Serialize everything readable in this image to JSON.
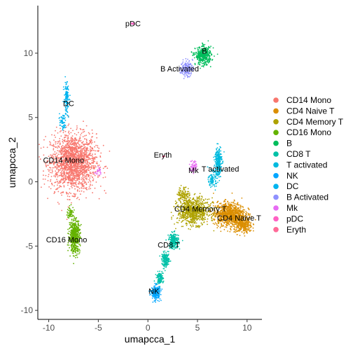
{
  "chart_data": {
    "type": "scatter",
    "title": "",
    "xlabel": "umapcca_1",
    "ylabel": "umapcca_2",
    "xlim": [
      -11.1,
      11.5
    ],
    "ylim": [
      -10.7,
      13.7
    ],
    "xticks": [
      -10,
      -5,
      0,
      5,
      10
    ],
    "yticks": [
      -10,
      -5,
      0,
      5,
      10
    ],
    "xtick_labels": [
      "-10",
      "-5",
      "0",
      "5",
      "10"
    ],
    "ytick_labels": [
      "-10",
      "-5",
      "0",
      "5",
      "10"
    ],
    "grid": false,
    "legend_position": "right",
    "series": [
      {
        "name": "CD14 Mono",
        "color": "#F8766D",
        "label_x": -8.5,
        "label_y": 1.7,
        "blobs": [
          {
            "cx": -7.5,
            "cy": 1.5,
            "sx": 2.3,
            "sy": 2.2,
            "n": 1800
          }
        ]
      },
      {
        "name": "CD4 Naive T",
        "color": "#DB8E00",
        "label_x": 9.2,
        "label_y": -2.8,
        "blobs": [
          {
            "cx": 8.2,
            "cy": -2.5,
            "sx": 1.6,
            "sy": 0.9,
            "n": 900
          },
          {
            "cx": 9.6,
            "cy": -3.4,
            "sx": 0.9,
            "sy": 0.6,
            "n": 300
          }
        ]
      },
      {
        "name": "CD4 Memory T",
        "color": "#AEA200",
        "label_x": 5.3,
        "label_y": -2.1,
        "blobs": [
          {
            "cx": 4.6,
            "cy": -2.3,
            "sx": 1.6,
            "sy": 1.0,
            "n": 800
          },
          {
            "cx": 3.6,
            "cy": -1.0,
            "sx": 0.6,
            "sy": 0.6,
            "n": 120
          }
        ]
      },
      {
        "name": "CD16 Mono",
        "color": "#64B200",
        "label_x": -8.2,
        "label_y": -4.5,
        "blobs": [
          {
            "cx": -7.4,
            "cy": -4.2,
            "sx": 0.55,
            "sy": 1.3,
            "n": 500
          },
          {
            "cx": -7.8,
            "cy": -2.4,
            "sx": 0.35,
            "sy": 0.45,
            "n": 60
          }
        ]
      },
      {
        "name": "B",
        "color": "#00BD5C",
        "label_x": 5.7,
        "label_y": 10.2,
        "blobs": [
          {
            "cx": 5.6,
            "cy": 9.8,
            "sx": 0.8,
            "sy": 0.7,
            "n": 400
          }
        ]
      },
      {
        "name": "CD8 T",
        "color": "#00C1A7",
        "label_x": 2.1,
        "label_y": -4.9,
        "blobs": [
          {
            "cx": 2.6,
            "cy": -4.6,
            "sx": 0.5,
            "sy": 0.6,
            "n": 220
          },
          {
            "cx": 1.8,
            "cy": -6.1,
            "sx": 0.4,
            "sy": 0.55,
            "n": 160
          },
          {
            "cx": 1.2,
            "cy": -7.5,
            "sx": 0.35,
            "sy": 0.45,
            "n": 110
          }
        ]
      },
      {
        "name": "T activated",
        "color": "#00BADE",
        "label_x": 7.3,
        "label_y": 1.0,
        "blobs": [
          {
            "cx": 7.1,
            "cy": 1.6,
            "sx": 0.35,
            "sy": 1.2,
            "n": 260
          },
          {
            "cx": 6.5,
            "cy": 0.2,
            "sx": 0.4,
            "sy": 0.6,
            "n": 100
          }
        ]
      },
      {
        "name": "NK",
        "color": "#00A6FF",
        "label_x": 0.6,
        "label_y": -8.5,
        "blobs": [
          {
            "cx": 0.8,
            "cy": -8.6,
            "sx": 0.45,
            "sy": 0.55,
            "n": 240
          }
        ]
      },
      {
        "name": "DC",
        "color": "#00B4EF",
        "label_x": -8.0,
        "label_y": 6.1,
        "blobs": [
          {
            "cx": -8.2,
            "cy": 6.5,
            "sx": 0.25,
            "sy": 1.3,
            "n": 120
          },
          {
            "cx": -8.6,
            "cy": 4.6,
            "sx": 0.3,
            "sy": 0.6,
            "n": 60
          }
        ]
      },
      {
        "name": "B Activated",
        "color": "#8F91FF",
        "label_x": 3.2,
        "label_y": 8.8,
        "blobs": [
          {
            "cx": 3.9,
            "cy": 8.8,
            "sx": 0.6,
            "sy": 0.6,
            "n": 160
          }
        ]
      },
      {
        "name": "Mk",
        "color": "#E76BF3",
        "label_x": 4.6,
        "label_y": 0.9,
        "blobs": [
          {
            "cx": 4.6,
            "cy": 1.2,
            "sx": 0.35,
            "sy": 0.5,
            "n": 60
          },
          {
            "cx": -5.0,
            "cy": 0.8,
            "sx": 0.3,
            "sy": 0.3,
            "n": 20
          }
        ]
      },
      {
        "name": "pDC",
        "color": "#FF61C3",
        "label_x": -1.5,
        "label_y": 12.3,
        "blobs": [
          {
            "cx": -1.5,
            "cy": 12.3,
            "sx": 0.15,
            "sy": 0.12,
            "n": 10
          }
        ]
      },
      {
        "name": "Eryth",
        "color": "#FF6A98",
        "label_x": 1.5,
        "label_y": 2.1,
        "blobs": [
          {
            "cx": 1.6,
            "cy": 2.0,
            "sx": 0.15,
            "sy": 0.15,
            "n": 6
          }
        ]
      }
    ]
  }
}
